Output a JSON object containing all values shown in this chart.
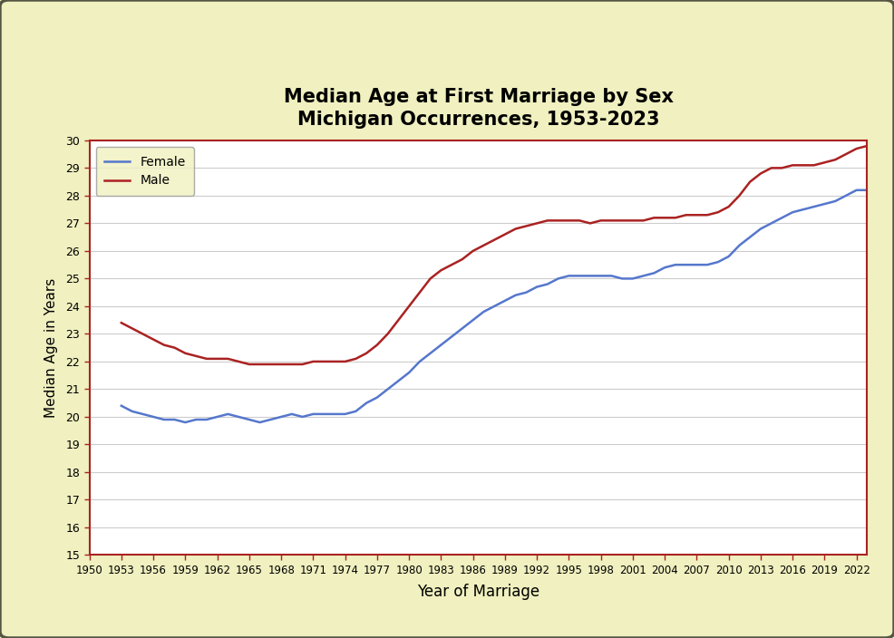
{
  "title": "Median Age at First Marriage by Sex\nMichigan Occurrences, 1953-2023",
  "xlabel": "Year of Marriage",
  "ylabel": "Median Age in Years",
  "background_outer": "#f0f0c0",
  "background_inner": "#ffffff",
  "border_color": "#aa2222",
  "female_color": "#5577cc",
  "male_color": "#aa2222",
  "ylim": [
    15,
    30
  ],
  "xlim": [
    1950,
    2023
  ],
  "yticks": [
    15,
    16,
    17,
    18,
    19,
    20,
    21,
    22,
    23,
    24,
    25,
    26,
    27,
    28,
    29,
    30
  ],
  "xticks": [
    1950,
    1953,
    1956,
    1959,
    1962,
    1965,
    1968,
    1971,
    1974,
    1977,
    1980,
    1983,
    1986,
    1989,
    1992,
    1995,
    1998,
    2001,
    2004,
    2007,
    2010,
    2013,
    2016,
    2019,
    2022
  ],
  "years": [
    1953,
    1954,
    1955,
    1956,
    1957,
    1958,
    1959,
    1960,
    1961,
    1962,
    1963,
    1964,
    1965,
    1966,
    1967,
    1968,
    1969,
    1970,
    1971,
    1972,
    1973,
    1974,
    1975,
    1976,
    1977,
    1978,
    1979,
    1980,
    1981,
    1982,
    1983,
    1984,
    1985,
    1986,
    1987,
    1988,
    1989,
    1990,
    1991,
    1992,
    1993,
    1994,
    1995,
    1996,
    1997,
    1998,
    1999,
    2000,
    2001,
    2002,
    2003,
    2004,
    2005,
    2006,
    2007,
    2008,
    2009,
    2010,
    2011,
    2012,
    2013,
    2014,
    2015,
    2016,
    2017,
    2018,
    2019,
    2020,
    2021,
    2022,
    2023
  ],
  "female": [
    20.4,
    20.2,
    20.1,
    20.0,
    19.9,
    19.9,
    19.8,
    19.9,
    19.9,
    20.0,
    20.1,
    20.0,
    19.9,
    19.8,
    19.9,
    20.0,
    20.1,
    20.0,
    20.1,
    20.1,
    20.1,
    20.1,
    20.2,
    20.5,
    20.7,
    21.0,
    21.3,
    21.6,
    22.0,
    22.3,
    22.6,
    22.9,
    23.2,
    23.5,
    23.8,
    24.0,
    24.2,
    24.4,
    24.5,
    24.7,
    24.8,
    25.0,
    25.1,
    25.1,
    25.1,
    25.1,
    25.1,
    25.0,
    25.0,
    25.1,
    25.2,
    25.4,
    25.5,
    25.5,
    25.5,
    25.5,
    25.6,
    25.8,
    26.2,
    26.5,
    26.8,
    27.0,
    27.2,
    27.4,
    27.5,
    27.6,
    27.7,
    27.8,
    28.0,
    28.2,
    28.2
  ],
  "male": [
    23.4,
    23.2,
    23.0,
    22.8,
    22.6,
    22.5,
    22.3,
    22.2,
    22.1,
    22.1,
    22.1,
    22.0,
    21.9,
    21.9,
    21.9,
    21.9,
    21.9,
    21.9,
    22.0,
    22.0,
    22.0,
    22.0,
    22.1,
    22.3,
    22.6,
    23.0,
    23.5,
    24.0,
    24.5,
    25.0,
    25.3,
    25.5,
    25.7,
    26.0,
    26.2,
    26.4,
    26.6,
    26.8,
    26.9,
    27.0,
    27.1,
    27.1,
    27.1,
    27.1,
    27.0,
    27.1,
    27.1,
    27.1,
    27.1,
    27.1,
    27.2,
    27.2,
    27.2,
    27.3,
    27.3,
    27.3,
    27.4,
    27.6,
    28.0,
    28.5,
    28.8,
    29.0,
    29.0,
    29.1,
    29.1,
    29.1,
    29.2,
    29.3,
    29.5,
    29.7,
    29.8
  ]
}
